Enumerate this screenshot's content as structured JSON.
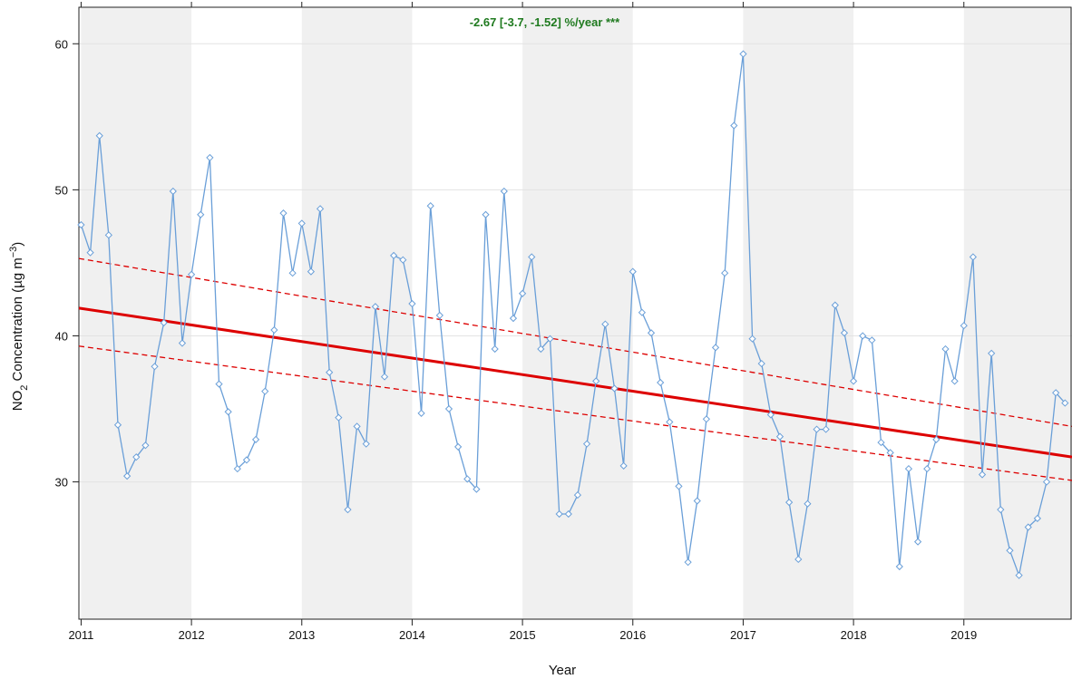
{
  "chart_data": {
    "type": "line",
    "xlabel": "Year",
    "ylabel": {
      "prefix": "NO",
      "subscript": "2",
      "middle": " Concentration (µg m",
      "superscript": "−3",
      "suffix": ")"
    },
    "xlim": [
      2010.98,
      2019.98
    ],
    "ylim": [
      20.6,
      62.5
    ],
    "x_ticks": [
      2011,
      2012,
      2013,
      2014,
      2015,
      2016,
      2017,
      2018,
      2019
    ],
    "y_ticks": [
      30,
      40,
      50,
      60
    ],
    "shaded_years": [
      2011,
      2013,
      2015,
      2017,
      2019
    ],
    "annotation": {
      "text": "-2.67 [-3.7, -1.52] %/year ***",
      "color": "#1f7a1f",
      "x": 2015.2,
      "y": 61.2
    },
    "series": [
      {
        "color": "#6a9fd8",
        "values": [
          47.6,
          45.7,
          53.7,
          46.9,
          33.9,
          30.4,
          31.7,
          32.5,
          37.9,
          40.9,
          49.9,
          39.5,
          44.2,
          48.3,
          52.2,
          36.7,
          34.8,
          30.9,
          31.5,
          32.9,
          36.2,
          40.4,
          48.4,
          44.3,
          47.7,
          44.4,
          48.7,
          37.5,
          34.4,
          28.1,
          33.8,
          32.6,
          42.0,
          37.2,
          45.5,
          45.2,
          42.2,
          34.7,
          48.9,
          41.4,
          35.0,
          32.4,
          30.2,
          29.5,
          48.3,
          39.1,
          49.9,
          41.2,
          42.9,
          45.4,
          39.1,
          39.8,
          27.8,
          27.8,
          29.1,
          32.6,
          36.9,
          40.8,
          36.4,
          31.1,
          44.4,
          41.6,
          40.2,
          36.8,
          34.1,
          29.7,
          24.5,
          28.7,
          34.3,
          39.2,
          44.3,
          54.4,
          59.3,
          39.8,
          38.1,
          34.6,
          33.1,
          28.6,
          24.7,
          28.5,
          33.6,
          33.6,
          42.1,
          40.2,
          36.9,
          40.0,
          39.7,
          32.7,
          32.0,
          24.2,
          30.9,
          25.9,
          30.9,
          32.9,
          39.1,
          36.9,
          40.7,
          45.4,
          30.5,
          38.8,
          28.1,
          25.3,
          23.6,
          26.9,
          27.5,
          30.0,
          36.1,
          35.4
        ]
      }
    ],
    "trend": {
      "color": "#dd0000",
      "x": [
        2010.98,
        2019.98
      ],
      "y": [
        41.9,
        31.7
      ],
      "upper_ci_y": [
        45.3,
        33.8
      ],
      "lower_ci_y": [
        39.3,
        30.1
      ]
    }
  }
}
